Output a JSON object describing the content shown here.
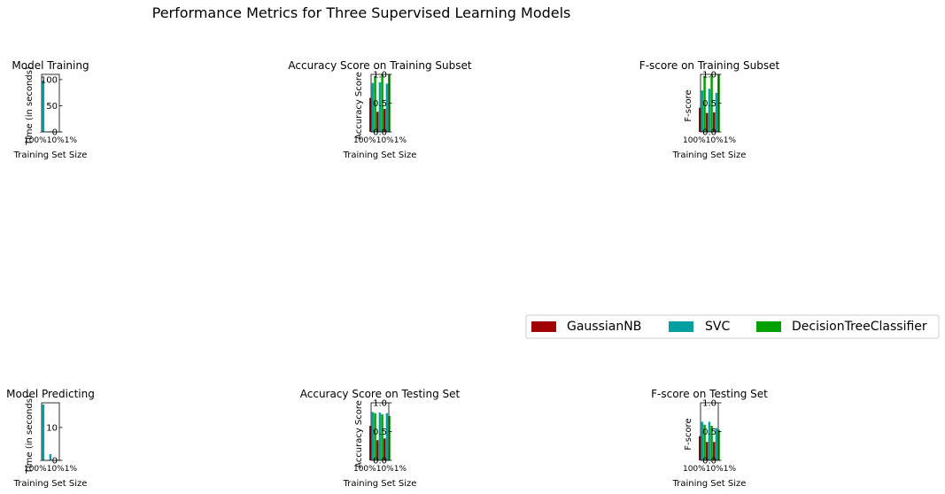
{
  "title": "Performance Metrics for Three Supervised Learning Models",
  "legend": {
    "placement": "right, between rows",
    "entries": [
      {
        "label": "GaussianNB",
        "color": "#a00000"
      },
      {
        "label": "SVC",
        "color": "#00a0a0"
      },
      {
        "label": "DecisionTreeClassifier",
        "color": "#00a000"
      }
    ]
  },
  "chart_data": [
    {
      "type": "bar",
      "title": "Model Training",
      "xlabel": "Training Set Size",
      "ylabel": "Time (in seconds)",
      "ylim": [
        0,
        110
      ],
      "yticks": [
        0,
        50,
        100
      ],
      "ytick_labels": [
        "0",
        "50",
        "100"
      ],
      "xtick_label": "100%10%1%",
      "series": [
        {
          "name": "GaussianNB",
          "values": [
            0.05,
            0.02,
            0.01
          ]
        },
        {
          "name": "SVC",
          "values": [
            98,
            1.2,
            0.02
          ]
        },
        {
          "name": "DecisionTreeClassifier",
          "values": [
            0.6,
            0.05,
            0.01
          ]
        }
      ]
    },
    {
      "type": "bar",
      "title": "Accuracy Score on Training Subset",
      "xlabel": "Training Set Size",
      "ylabel": "Accuracy Score",
      "ylim": [
        0,
        1.0
      ],
      "yticks": [
        0,
        0.5,
        1.0
      ],
      "ytick_labels": [
        "0.0",
        "0.5",
        "1.0"
      ],
      "xtick_label": "100%10%1%",
      "series": [
        {
          "name": "GaussianNB",
          "values": [
            0.59,
            0.35,
            0.4
          ]
        },
        {
          "name": "SVC",
          "values": [
            0.85,
            0.86,
            0.84
          ]
        },
        {
          "name": "DecisionTreeClassifier",
          "values": [
            0.97,
            1.0,
            1.0
          ]
        }
      ]
    },
    {
      "type": "bar",
      "title": "F-score on Training Subset",
      "xlabel": "Training Set Size",
      "ylabel": "F-score",
      "ylim": [
        0,
        1.0
      ],
      "yticks": [
        0,
        0.5,
        1.0
      ],
      "ytick_labels": [
        "0.0",
        "0.5",
        "1.0"
      ],
      "xtick_label": "100%10%1%",
      "series": [
        {
          "name": "GaussianNB",
          "values": [
            0.42,
            0.33,
            0.34
          ]
        },
        {
          "name": "SVC",
          "values": [
            0.72,
            0.75,
            0.68
          ]
        },
        {
          "name": "DecisionTreeClassifier",
          "values": [
            0.97,
            1.0,
            1.0
          ]
        }
      ]
    },
    {
      "type": "bar",
      "title": "Model Predicting",
      "xlabel": "Training Set Size",
      "ylabel": "Time (in seconds)",
      "ylim": [
        0,
        17.5
      ],
      "yticks": [
        0,
        10
      ],
      "ytick_labels": [
        "0",
        "10"
      ],
      "xtick_label": "100%10%1%",
      "series": [
        {
          "name": "GaussianNB",
          "values": [
            0.03,
            0.01,
            0.01
          ]
        },
        {
          "name": "SVC",
          "values": [
            17,
            1.9,
            0.2
          ]
        },
        {
          "name": "DecisionTreeClassifier",
          "values": [
            0.02,
            0.01,
            0.01
          ]
        }
      ]
    },
    {
      "type": "bar",
      "title": "Accuracy Score on Testing Set",
      "xlabel": "Training Set Size",
      "ylabel": "Accuracy Score",
      "ylim": [
        0,
        1.0
      ],
      "yticks": [
        0,
        0.5,
        1.0
      ],
      "ytick_labels": [
        "0.0",
        "0.5",
        "1.0"
      ],
      "xtick_label": "100%10%1%",
      "series": [
        {
          "name": "GaussianNB",
          "values": [
            0.6,
            0.35,
            0.38
          ]
        },
        {
          "name": "SVC",
          "values": [
            0.84,
            0.83,
            0.82
          ]
        },
        {
          "name": "DecisionTreeClassifier",
          "values": [
            0.82,
            0.8,
            0.77
          ]
        }
      ]
    },
    {
      "type": "bar",
      "title": "F-score on Testing Set",
      "xlabel": "Training Set Size",
      "ylabel": "F-score",
      "ylim": [
        0,
        1.0
      ],
      "yticks": [
        0,
        0.5,
        1.0
      ],
      "ytick_labels": [
        "0.0",
        "0.5",
        "1.0"
      ],
      "xtick_label": "100%10%1%",
      "series": [
        {
          "name": "GaussianNB",
          "values": [
            0.42,
            0.32,
            0.32
          ]
        },
        {
          "name": "SVC",
          "values": [
            0.67,
            0.67,
            0.56
          ]
        },
        {
          "name": "DecisionTreeClassifier",
          "values": [
            0.62,
            0.6,
            0.53
          ]
        }
      ]
    }
  ]
}
